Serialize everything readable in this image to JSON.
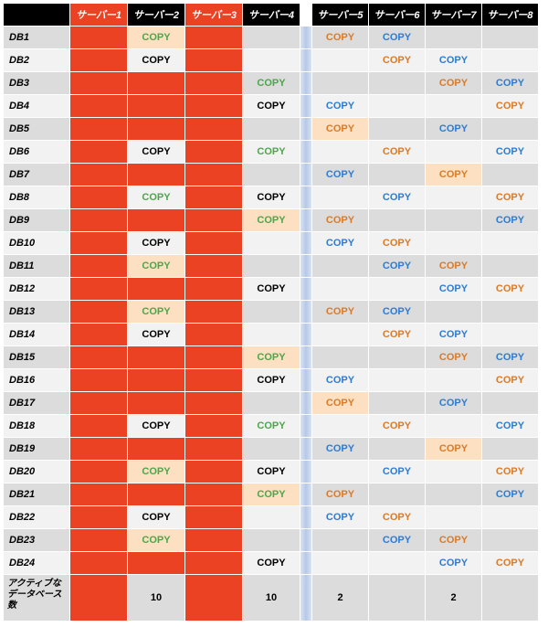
{
  "colors": {
    "header_red": "#ec4224",
    "header_black": "#000000",
    "row_even": "#dcdcdc",
    "row_odd": "#f2f2f2",
    "cell_red": "#ec4224",
    "cell_peach": "#fde0c1",
    "text_green": "#4fa54d",
    "text_orange": "#d97b28",
    "text_blue": "#2f7bd1",
    "text_black": "#000000",
    "gap_gradient_light": "#d8e2f2",
    "gap_gradient_dark": "#b7c9e8"
  },
  "copy_label": "COPY",
  "headers": [
    "サーバー1",
    "サーバー2",
    "サーバー3",
    "サーバー4",
    "サーバー5",
    "サーバー6",
    "サーバー7",
    "サーバー8"
  ],
  "header_styles": [
    "red",
    "black",
    "red",
    "black",
    "black",
    "black",
    "black",
    "black"
  ],
  "row_labels": [
    "DB1",
    "DB2",
    "DB3",
    "DB4",
    "DB5",
    "DB6",
    "DB7",
    "DB8",
    "DB9",
    "DB10",
    "DB11",
    "DB12",
    "DB13",
    "DB14",
    "DB15",
    "DB16",
    "DB17",
    "DB18",
    "DB19",
    "DB20",
    "DB21",
    "DB22",
    "DB23",
    "DB24"
  ],
  "footer_label": "アクティブなデータベース数",
  "footer_values": [
    "",
    "10",
    "",
    "10",
    "2",
    "",
    "2",
    ""
  ],
  "footer_red_cols": [
    0,
    2
  ],
  "cells": [
    [
      {
        "t": "red"
      },
      {
        "t": "peach",
        "c": "green"
      },
      {
        "t": "red"
      },
      {
        "t": "plain"
      },
      {
        "t": "plain",
        "c": "orange"
      },
      {
        "t": "plain",
        "c": "blue"
      },
      {
        "t": "plain"
      },
      {
        "t": "plain"
      }
    ],
    [
      {
        "t": "red"
      },
      {
        "t": "plain",
        "c": "black"
      },
      {
        "t": "red"
      },
      {
        "t": "plain"
      },
      {
        "t": "plain"
      },
      {
        "t": "plain",
        "c": "orange"
      },
      {
        "t": "plain",
        "c": "blue"
      },
      {
        "t": "plain"
      }
    ],
    [
      {
        "t": "red"
      },
      {
        "t": "red"
      },
      {
        "t": "red"
      },
      {
        "t": "plain",
        "c": "green"
      },
      {
        "t": "plain"
      },
      {
        "t": "plain"
      },
      {
        "t": "plain",
        "c": "orange"
      },
      {
        "t": "plain",
        "c": "blue"
      }
    ],
    [
      {
        "t": "red"
      },
      {
        "t": "red"
      },
      {
        "t": "red"
      },
      {
        "t": "plain",
        "c": "black"
      },
      {
        "t": "plain",
        "c": "blue"
      },
      {
        "t": "plain"
      },
      {
        "t": "plain"
      },
      {
        "t": "plain",
        "c": "orange"
      }
    ],
    [
      {
        "t": "red"
      },
      {
        "t": "red"
      },
      {
        "t": "red"
      },
      {
        "t": "plain"
      },
      {
        "t": "peach",
        "c": "orange"
      },
      {
        "t": "plain"
      },
      {
        "t": "plain",
        "c": "blue"
      },
      {
        "t": "plain"
      }
    ],
    [
      {
        "t": "red"
      },
      {
        "t": "plain",
        "c": "black"
      },
      {
        "t": "red"
      },
      {
        "t": "plain",
        "c": "green"
      },
      {
        "t": "plain"
      },
      {
        "t": "plain",
        "c": "orange"
      },
      {
        "t": "plain"
      },
      {
        "t": "plain",
        "c": "blue"
      }
    ],
    [
      {
        "t": "red"
      },
      {
        "t": "red"
      },
      {
        "t": "red"
      },
      {
        "t": "plain"
      },
      {
        "t": "plain",
        "c": "blue"
      },
      {
        "t": "plain"
      },
      {
        "t": "peach",
        "c": "orange"
      },
      {
        "t": "plain"
      }
    ],
    [
      {
        "t": "red"
      },
      {
        "t": "plain",
        "c": "green"
      },
      {
        "t": "red"
      },
      {
        "t": "plain",
        "c": "black"
      },
      {
        "t": "plain"
      },
      {
        "t": "plain",
        "c": "blue"
      },
      {
        "t": "plain"
      },
      {
        "t": "plain",
        "c": "orange"
      }
    ],
    [
      {
        "t": "red"
      },
      {
        "t": "red"
      },
      {
        "t": "red"
      },
      {
        "t": "peach",
        "c": "green"
      },
      {
        "t": "plain",
        "c": "orange"
      },
      {
        "t": "plain"
      },
      {
        "t": "plain"
      },
      {
        "t": "plain",
        "c": "blue"
      }
    ],
    [
      {
        "t": "red"
      },
      {
        "t": "plain",
        "c": "black"
      },
      {
        "t": "red"
      },
      {
        "t": "plain"
      },
      {
        "t": "plain",
        "c": "blue"
      },
      {
        "t": "plain",
        "c": "orange"
      },
      {
        "t": "plain"
      },
      {
        "t": "plain"
      }
    ],
    [
      {
        "t": "red"
      },
      {
        "t": "peach",
        "c": "green"
      },
      {
        "t": "red"
      },
      {
        "t": "plain"
      },
      {
        "t": "plain"
      },
      {
        "t": "plain",
        "c": "blue"
      },
      {
        "t": "plain",
        "c": "orange"
      },
      {
        "t": "plain"
      }
    ],
    [
      {
        "t": "red"
      },
      {
        "t": "red"
      },
      {
        "t": "red"
      },
      {
        "t": "plain",
        "c": "black"
      },
      {
        "t": "plain"
      },
      {
        "t": "plain"
      },
      {
        "t": "plain",
        "c": "blue"
      },
      {
        "t": "plain",
        "c": "orange"
      }
    ],
    [
      {
        "t": "red"
      },
      {
        "t": "peach",
        "c": "green"
      },
      {
        "t": "red"
      },
      {
        "t": "plain"
      },
      {
        "t": "plain",
        "c": "orange"
      },
      {
        "t": "plain",
        "c": "blue"
      },
      {
        "t": "plain"
      },
      {
        "t": "plain"
      }
    ],
    [
      {
        "t": "red"
      },
      {
        "t": "plain",
        "c": "black"
      },
      {
        "t": "red"
      },
      {
        "t": "plain"
      },
      {
        "t": "plain"
      },
      {
        "t": "plain",
        "c": "orange"
      },
      {
        "t": "plain",
        "c": "blue"
      },
      {
        "t": "plain"
      }
    ],
    [
      {
        "t": "red"
      },
      {
        "t": "red"
      },
      {
        "t": "red"
      },
      {
        "t": "peach",
        "c": "green"
      },
      {
        "t": "plain"
      },
      {
        "t": "plain"
      },
      {
        "t": "plain",
        "c": "orange"
      },
      {
        "t": "plain",
        "c": "blue"
      }
    ],
    [
      {
        "t": "red"
      },
      {
        "t": "red"
      },
      {
        "t": "red"
      },
      {
        "t": "plain",
        "c": "black"
      },
      {
        "t": "plain",
        "c": "blue"
      },
      {
        "t": "plain"
      },
      {
        "t": "plain"
      },
      {
        "t": "plain",
        "c": "orange"
      }
    ],
    [
      {
        "t": "red"
      },
      {
        "t": "red"
      },
      {
        "t": "red"
      },
      {
        "t": "plain"
      },
      {
        "t": "peach",
        "c": "orange"
      },
      {
        "t": "plain"
      },
      {
        "t": "plain",
        "c": "blue"
      },
      {
        "t": "plain"
      }
    ],
    [
      {
        "t": "red"
      },
      {
        "t": "plain",
        "c": "black"
      },
      {
        "t": "red"
      },
      {
        "t": "plain",
        "c": "green"
      },
      {
        "t": "plain"
      },
      {
        "t": "plain",
        "c": "orange"
      },
      {
        "t": "plain"
      },
      {
        "t": "plain",
        "c": "blue"
      }
    ],
    [
      {
        "t": "red"
      },
      {
        "t": "red"
      },
      {
        "t": "red"
      },
      {
        "t": "plain"
      },
      {
        "t": "plain",
        "c": "blue"
      },
      {
        "t": "plain"
      },
      {
        "t": "peach",
        "c": "orange"
      },
      {
        "t": "plain"
      }
    ],
    [
      {
        "t": "red"
      },
      {
        "t": "peach",
        "c": "green"
      },
      {
        "t": "red"
      },
      {
        "t": "plain",
        "c": "black"
      },
      {
        "t": "plain"
      },
      {
        "t": "plain",
        "c": "blue"
      },
      {
        "t": "plain"
      },
      {
        "t": "plain",
        "c": "orange"
      }
    ],
    [
      {
        "t": "red"
      },
      {
        "t": "red"
      },
      {
        "t": "red"
      },
      {
        "t": "peach",
        "c": "green"
      },
      {
        "t": "plain",
        "c": "orange"
      },
      {
        "t": "plain"
      },
      {
        "t": "plain"
      },
      {
        "t": "plain",
        "c": "blue"
      }
    ],
    [
      {
        "t": "red"
      },
      {
        "t": "plain",
        "c": "black"
      },
      {
        "t": "red"
      },
      {
        "t": "plain"
      },
      {
        "t": "plain",
        "c": "blue"
      },
      {
        "t": "plain",
        "c": "orange"
      },
      {
        "t": "plain"
      },
      {
        "t": "plain"
      }
    ],
    [
      {
        "t": "red"
      },
      {
        "t": "peach",
        "c": "green"
      },
      {
        "t": "red"
      },
      {
        "t": "plain"
      },
      {
        "t": "plain"
      },
      {
        "t": "plain",
        "c": "blue"
      },
      {
        "t": "plain",
        "c": "orange"
      },
      {
        "t": "plain"
      }
    ],
    [
      {
        "t": "red"
      },
      {
        "t": "red"
      },
      {
        "t": "red"
      },
      {
        "t": "plain",
        "c": "black"
      },
      {
        "t": "plain"
      },
      {
        "t": "plain"
      },
      {
        "t": "plain",
        "c": "blue"
      },
      {
        "t": "plain",
        "c": "orange"
      }
    ]
  ]
}
